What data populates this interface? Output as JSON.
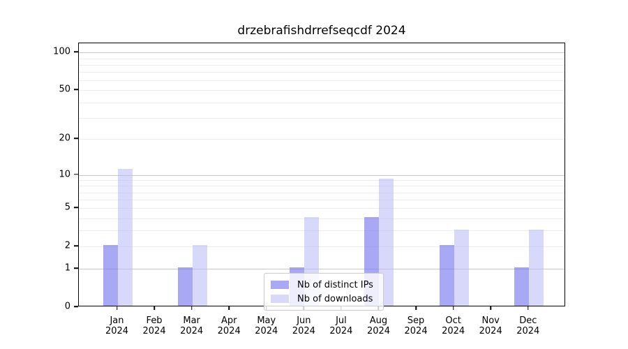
{
  "title": "drzebrafishdrrefseqcdf 2024",
  "legend": {
    "items": [
      {
        "label": "Nb of distinct IPs",
        "color": "rgba(121,121,240,0.65)"
      },
      {
        "label": "Nb of downloads",
        "color": "rgba(184,184,245,0.55)"
      }
    ],
    "position": "lower center"
  },
  "colors": {
    "ips_bar": "rgba(121,121,240,0.65)",
    "downloads_bar": "rgba(184,184,245,0.55)",
    "major_grid": "#c8c8c8",
    "minor_grid": "#ededed",
    "spine": "#000000"
  },
  "chart_data": {
    "type": "bar",
    "title": "drzebrafishdrrefseqcdf 2024",
    "categories": [
      "Jan 2024",
      "Feb 2024",
      "Mar 2024",
      "Apr 2024",
      "May 2024",
      "Jun 2024",
      "Jul 2024",
      "Aug 2024",
      "Sep 2024",
      "Oct 2024",
      "Nov 2024",
      "Dec 2024"
    ],
    "x_axis": {
      "months": [
        "Jan",
        "Feb",
        "Mar",
        "Apr",
        "May",
        "Jun",
        "Jul",
        "Aug",
        "Sep",
        "Oct",
        "Nov",
        "Dec"
      ],
      "year": "2024"
    },
    "series": [
      {
        "name": "Nb of distinct IPs",
        "values": [
          2,
          0,
          1,
          0,
          0,
          1,
          0,
          4,
          0,
          2,
          0,
          1
        ],
        "color": "rgba(121,121,240,0.65)"
      },
      {
        "name": "Nb of downloads",
        "values": [
          11,
          0,
          2,
          0,
          0,
          4,
          0,
          9,
          0,
          3,
          0,
          3
        ],
        "color": "rgba(184,184,245,0.55)"
      }
    ],
    "y_axis": {
      "scale": "log1p",
      "ticks": [
        0,
        1,
        2,
        5,
        10,
        20,
        50,
        100
      ],
      "major_gridlines": [
        1,
        10,
        100
      ],
      "minor_gridlines": [
        2,
        3,
        4,
        5,
        6,
        7,
        8,
        9,
        20,
        30,
        40,
        50,
        60,
        70,
        80,
        90
      ],
      "range": [
        0,
        115
      ]
    },
    "grid": true,
    "legend_position": "lower center",
    "xlabel": "",
    "ylabel": ""
  }
}
